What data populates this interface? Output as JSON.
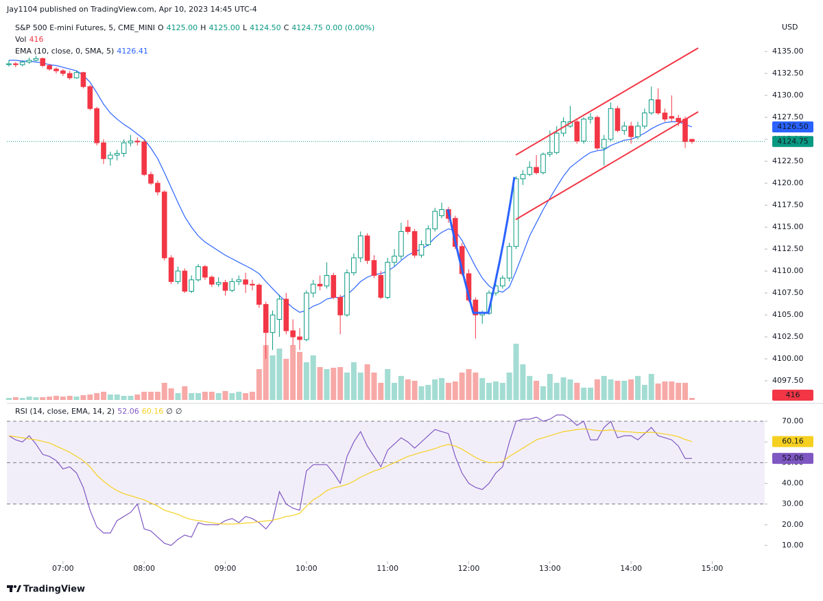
{
  "header": {
    "published": "Jay1104 published on TradingView.com, Apr 10, 2023 14:45 UTC-4",
    "symbol": "S&P 500 E-mini Futures, 5, CME_MINI",
    "ohlc": [
      {
        "label": "O",
        "value": "4125.00"
      },
      {
        "label": "H",
        "value": "4125.00"
      },
      {
        "label": "L",
        "value": "4124.50"
      },
      {
        "label": "C",
        "value": "4124.75"
      }
    ],
    "change": "0.00 (0.00%)"
  },
  "footer": {
    "brand": "TradingView"
  },
  "chart_data": {
    "type": "candlestick",
    "currency": "USD",
    "up_color": "#089981",
    "down_color": "#f23645",
    "ylim": [
      4095.16,
      4138.52
    ],
    "yticks": [
      {
        "value": 4097.5,
        "label": "4097.50"
      },
      {
        "value": 4100,
        "label": "4100.00"
      },
      {
        "value": 4102.5,
        "label": "4102.50"
      },
      {
        "value": 4105,
        "label": "4105.00"
      },
      {
        "value": 4107.5,
        "label": "4107.50"
      },
      {
        "value": 4110,
        "label": "4110.00"
      },
      {
        "value": 4112.5,
        "label": "4112.50"
      },
      {
        "value": 4115,
        "label": "4115.00"
      },
      {
        "value": 4117.5,
        "label": "4117.50"
      },
      {
        "value": 4120,
        "label": "4120.00"
      },
      {
        "value": 4122.5,
        "label": "4122.50"
      },
      {
        "value": 4125,
        "label": "4125.00"
      },
      {
        "value": 4127.5,
        "label": "4127.50"
      },
      {
        "value": 4130,
        "label": "4130.00"
      },
      {
        "value": 4132.5,
        "label": "4132.50"
      },
      {
        "value": 4135,
        "label": "4135.00"
      }
    ],
    "xlim": [
      -0.3,
      111.76
    ],
    "xticks": [
      {
        "value": 8,
        "label": "07:00"
      },
      {
        "value": 20,
        "label": "08:00"
      },
      {
        "value": 32,
        "label": "09:00"
      },
      {
        "value": 44,
        "label": "10:00"
      },
      {
        "value": 56,
        "label": "11:00"
      },
      {
        "value": 68,
        "label": "12:00"
      },
      {
        "value": 80,
        "label": "13:00"
      },
      {
        "value": 92,
        "label": "14:00"
      },
      {
        "value": 104,
        "label": "15:00"
      }
    ],
    "last_price_label": "4124.75",
    "ohlc": [
      [
        4133.5,
        4134,
        4133.3,
        4133.6
      ],
      [
        4133.6,
        4133.8,
        4133.2,
        4133.5
      ],
      [
        4133.5,
        4134,
        4133.3,
        4133.8
      ],
      [
        4133.8,
        4134.3,
        4133.6,
        4134
      ],
      [
        4134,
        4134.5,
        4133.9,
        4134.2
      ],
      [
        4134.2,
        4134.3,
        4133.2,
        4133.4
      ],
      [
        4133.4,
        4133.6,
        4132.8,
        4133
      ],
      [
        4133,
        4133.2,
        4132.5,
        4132.8
      ],
      [
        4132.8,
        4133,
        4132.2,
        4132.5
      ],
      [
        4132.5,
        4132.8,
        4131.8,
        4132
      ],
      [
        4132,
        4132.8,
        4131.9,
        4132.6
      ],
      [
        4132.6,
        4132.7,
        4130.8,
        4131
      ],
      [
        4131,
        4131.2,
        4128.3,
        4128.5
      ],
      [
        4128.5,
        4128.7,
        4124.3,
        4124.6
      ],
      [
        4124.6,
        4125,
        4122.2,
        4122.8
      ],
      [
        4122.8,
        4123.6,
        4122,
        4123.2
      ],
      [
        4123.2,
        4123.8,
        4122.6,
        4123.4
      ],
      [
        4123.4,
        4125,
        4123,
        4124.6
      ],
      [
        4124.6,
        4125.5,
        4124.2,
        4124.8
      ],
      [
        4124.8,
        4125.2,
        4124.3,
        4124.7
      ],
      [
        4124.7,
        4124.9,
        4120.8,
        4121
      ],
      [
        4121,
        4121.3,
        4119.8,
        4120
      ],
      [
        4120,
        4120.3,
        4118.6,
        4119
      ],
      [
        4119,
        4119.2,
        4111.2,
        4111.5
      ],
      [
        4111.5,
        4111.8,
        4108.5,
        4108.8
      ],
      [
        4108.8,
        4110.5,
        4108.5,
        4110
      ],
      [
        4110,
        4110.3,
        4107.5,
        4107.7
      ],
      [
        4107.7,
        4109.5,
        4107.5,
        4109
      ],
      [
        4109,
        4110.8,
        4108.8,
        4110.5
      ],
      [
        4110.5,
        4110.7,
        4109,
        4109.3
      ],
      [
        4109.3,
        4109.5,
        4108.2,
        4108.5
      ],
      [
        4108.5,
        4109.3,
        4108.2,
        4108.7
      ],
      [
        4108.7,
        4109,
        4107.2,
        4107.8
      ],
      [
        4107.8,
        4109.2,
        4107.6,
        4108.8
      ],
      [
        4108.8,
        4109.5,
        4108.4,
        4109
      ],
      [
        4109,
        4109.8,
        4107.5,
        4108.5
      ],
      [
        4108.5,
        4109,
        4107.8,
        4108.4
      ],
      [
        4108.4,
        4108.6,
        4105.8,
        4106.2
      ],
      [
        4106.2,
        4106.5,
        4100,
        4103
      ],
      [
        4103,
        4105.5,
        4101,
        4105
      ],
      [
        4104.5,
        4107.3,
        4102.5,
        4106.8
      ],
      [
        4106.8,
        4107.5,
        4102.8,
        4103.2
      ],
      [
        4103.2,
        4104.5,
        4101.5,
        4102.5
      ],
      [
        4102.5,
        4103.5,
        4101,
        4102.2
      ],
      [
        4102.2,
        4107.8,
        4102,
        4107.5
      ],
      [
        4107.5,
        4109,
        4107,
        4108.5
      ],
      [
        4108.5,
        4109.5,
        4107.8,
        4108.3
      ],
      [
        4108.3,
        4111,
        4108,
        4109.5
      ],
      [
        4109.5,
        4109.8,
        4106.8,
        4107
      ],
      [
        4107,
        4107.3,
        4102.8,
        4105
      ],
      [
        4105,
        4110.2,
        4104.8,
        4109.8
      ],
      [
        4109.8,
        4112,
        4109.5,
        4111.5
      ],
      [
        4111.5,
        4114.5,
        4111,
        4114
      ],
      [
        4114,
        4114.3,
        4110.8,
        4111.2
      ],
      [
        4111.2,
        4111.8,
        4109.2,
        4109.5
      ],
      [
        4109.5,
        4110,
        4106.8,
        4107
      ],
      [
        4107,
        4111.5,
        4106.8,
        4111
      ],
      [
        4111,
        4112.5,
        4110.5,
        4111.7
      ],
      [
        4111.7,
        4115.5,
        4111.3,
        4114.5
      ],
      [
        4115,
        4115.8,
        4114.2,
        4114.5
      ],
      [
        4114.5,
        4114.8,
        4111.5,
        4111.8
      ],
      [
        4111.8,
        4113.5,
        4111.5,
        4113
      ],
      [
        4113,
        4115.2,
        4112.8,
        4114.8
      ],
      [
        4114.8,
        4117.2,
        4114.5,
        4116.8
      ],
      [
        4116.3,
        4117.8,
        4116,
        4117
      ],
      [
        4117,
        4117.3,
        4115.5,
        4116
      ],
      [
        4116,
        4116.3,
        4112.5,
        4112.8
      ],
      [
        4112.8,
        4113.2,
        4109.5,
        4109.7
      ],
      [
        4109.7,
        4110.2,
        4106.5,
        4106.7
      ],
      [
        4106.7,
        4107,
        4102.3,
        4105
      ],
      [
        4105,
        4105.5,
        4104,
        4105.2
      ],
      [
        4105.2,
        4107.8,
        4105,
        4107.5
      ],
      [
        4107.5,
        4108.8,
        4107.2,
        4108.3
      ],
      [
        4108.3,
        4109.5,
        4108,
        4109.2
      ],
      [
        4109.2,
        4113.2,
        4108.8,
        4112.8
      ],
      [
        4112.8,
        4120.8,
        4112.5,
        4120.5
      ],
      [
        4120.5,
        4121.5,
        4119.8,
        4121
      ],
      [
        4121,
        4122.5,
        4120.8,
        4121.8
      ],
      [
        4121.8,
        4123.2,
        4121,
        4121.2
      ],
      [
        4121.2,
        4123.5,
        4121,
        4123.3
      ],
      [
        4123.3,
        4126,
        4123,
        4123.5
      ],
      [
        4123.5,
        4126.5,
        4123.3,
        4125.7
      ],
      [
        4125.7,
        4127.5,
        4125.3,
        4127
      ],
      [
        4126.5,
        4128.8,
        4126.3,
        4127
      ],
      [
        4127,
        4127.2,
        4124.5,
        4124.8
      ],
      [
        4124.8,
        4127.5,
        4124.5,
        4127.3
      ],
      [
        4127.3,
        4128,
        4126.8,
        4127.5
      ],
      [
        4127.5,
        4127.7,
        4123.8,
        4124
      ],
      [
        4124,
        4125.5,
        4122,
        4125
      ],
      [
        4125,
        4129.2,
        4124.8,
        4128.5
      ],
      [
        4128.5,
        4128.8,
        4125.8,
        4126
      ],
      [
        4126,
        4127,
        4125.5,
        4126.5
      ],
      [
        4126.5,
        4127,
        4124.5,
        4125.3
      ],
      [
        4125.3,
        4127,
        4125,
        4126.5
      ],
      [
        4126.5,
        4128.5,
        4126.2,
        4128
      ],
      [
        4128,
        4131,
        4127.8,
        4129.5
      ],
      [
        4129.5,
        4130.8,
        4127.8,
        4128
      ],
      [
        4128,
        4128.5,
        4127,
        4127.3
      ],
      [
        4127.6,
        4130,
        4127,
        4127.4
      ],
      [
        4127.4,
        4127.8,
        4126.5,
        4127
      ],
      [
        4127.3,
        4127.6,
        4124,
        4124.75
      ],
      [
        4125,
        4125,
        4124.5,
        4124.75
      ]
    ],
    "volume": {
      "name": "Vol",
      "legend_value": "416",
      "axis_label": "416",
      "up_color": "#a3dcd2",
      "down_color": "#f7a9a7",
      "values": [
        420,
        560,
        420,
        700,
        560,
        560,
        700,
        840,
        700,
        840,
        700,
        980,
        1110,
        1390,
        1670,
        1110,
        1110,
        840,
        840,
        1110,
        1670,
        1670,
        1670,
        3480,
        2360,
        1390,
        2780,
        1390,
        1390,
        1670,
        1670,
        1390,
        1810,
        1390,
        1670,
        1390,
        1670,
        6260,
        11120,
        9040,
        10430,
        8340,
        11120,
        9730,
        7650,
        9040,
        6670,
        6260,
        6530,
        6670,
        5560,
        7650,
        5560,
        7230,
        5560,
        3480,
        6260,
        3480,
        4870,
        4170,
        3890,
        2780,
        3060,
        4170,
        4450,
        3480,
        3750,
        5560,
        6260,
        5560,
        4450,
        3480,
        3750,
        3480,
        5560,
        11400,
        7230,
        4870,
        3890,
        2780,
        5280,
        3480,
        4590,
        4170,
        3480,
        2500,
        2500,
        4170,
        4870,
        4170,
        3890,
        3890,
        4170,
        4870,
        3060,
        5280,
        3340,
        3750,
        3750,
        3480,
        3480,
        416
      ]
    },
    "ema": {
      "name": "EMA (10, close, 0, SMA, 5)",
      "legend_value": "4126.41",
      "axis_label": "4126.50",
      "color": "#2962ff",
      "values": [
        4134.0,
        4134.0,
        4133.9,
        4133.9,
        4133.8,
        4133.7,
        4133.5,
        4133.4,
        4133.2,
        4133.0,
        4132.8,
        4132.3,
        4131.5,
        4130.3,
        4129.0,
        4128.0,
        4127.3,
        4126.7,
        4126.2,
        4125.6,
        4125.0,
        4124.0,
        4122.8,
        4121.2,
        4119.5,
        4117.8,
        4116.2,
        4115.0,
        4114.0,
        4113.3,
        4112.8,
        4112.3,
        4111.8,
        4111.4,
        4111.0,
        4110.6,
        4110.2,
        4109.7,
        4108.8,
        4108.0,
        4107.2,
        4106.5,
        4105.8,
        4105.3,
        4105.5,
        4106.0,
        4106.3,
        4106.8,
        4107.0,
        4107.0,
        4107.3,
        4108.0,
        4108.8,
        4109.3,
        4109.6,
        4109.7,
        4110.0,
        4110.5,
        4111.2,
        4111.8,
        4112.2,
        4112.5,
        4113.0,
        4113.8,
        4114.4,
        4114.8,
        4114.6,
        4113.5,
        4112.0,
        4110.5,
        4109.2,
        4108.3,
        4107.8,
        4107.6,
        4108.2,
        4110.0,
        4112.0,
        4114.0,
        4115.5,
        4117.0,
        4118.3,
        4119.6,
        4120.8,
        4121.8,
        4122.4,
        4123.0,
        4123.5,
        4123.7,
        4123.8,
        4124.3,
        4124.6,
        4124.9,
        4125.0,
        4125.3,
        4125.7,
        4126.2,
        4126.6,
        4126.9,
        4127.0,
        4127.0,
        4126.7,
        4126.41
      ]
    },
    "rsi": {
      "type": "line",
      "name": "RSI (14, close, EMA, 14, 2)",
      "extra": [
        "∅",
        "∅"
      ],
      "ylim": [
        2.38,
        77.29
      ],
      "yticks": [
        {
          "value": 10,
          "label": "10.00"
        },
        {
          "value": 20,
          "label": "20.00"
        },
        {
          "value": 30,
          "label": "30.00"
        },
        {
          "value": 40,
          "label": "40.00"
        },
        {
          "value": 50,
          "label": "50.00"
        },
        {
          "value": 60,
          "label": "60.00"
        },
        {
          "value": 70,
          "label": "70.00"
        }
      ],
      "band": [
        30,
        70
      ],
      "midline": 50,
      "band_color": "#ede7f6",
      "series": [
        {
          "legend_value": "52.06",
          "color": "#7e57c2",
          "values": [
            63,
            61,
            60,
            63,
            59,
            54,
            53,
            51,
            47,
            48,
            45,
            38,
            27,
            19,
            16,
            16,
            22,
            24,
            26,
            30,
            18,
            17,
            14,
            11,
            10,
            13,
            15,
            14,
            21,
            20,
            20,
            20,
            22,
            23,
            21,
            24,
            23,
            21,
            18,
            22,
            36,
            30,
            28,
            27,
            46,
            49,
            49,
            49,
            45,
            40,
            53,
            60,
            65,
            58,
            53,
            48,
            56,
            59,
            62,
            60,
            57,
            60,
            63,
            66,
            65,
            64,
            53,
            45,
            40,
            38,
            37,
            40,
            45,
            48,
            60,
            70,
            71,
            71,
            72,
            70,
            71,
            73,
            73,
            71,
            68,
            70,
            61,
            61,
            67,
            70,
            62,
            63,
            63,
            61,
            64,
            67,
            63,
            62,
            61,
            58,
            52,
            52.06
          ]
        },
        {
          "legend_value": "60.16",
          "color": "#f5d020",
          "values": [
            63,
            62.5,
            62,
            61.5,
            61,
            60.3,
            59.5,
            58,
            56.5,
            55,
            53,
            51,
            48,
            44,
            41,
            38.5,
            36.5,
            35,
            34,
            33,
            32,
            30.5,
            29,
            27,
            26,
            25,
            23.5,
            22.5,
            22,
            21.5,
            21,
            20.5,
            20.3,
            20.3,
            20.5,
            20.8,
            21,
            21.5,
            21.8,
            22.2,
            23,
            24,
            24.5,
            25.5,
            29,
            32,
            34,
            36.5,
            37.8,
            38.5,
            39.5,
            41,
            43,
            44.5,
            46,
            47,
            48.5,
            50,
            51.5,
            53,
            54,
            55,
            55.8,
            56.8,
            58,
            58.8,
            58,
            56.5,
            54.5,
            52.5,
            51,
            50,
            50,
            50.5,
            53,
            55,
            57,
            59,
            61,
            62,
            63,
            64,
            65,
            65.5,
            66,
            66.3,
            66,
            65.5,
            65.5,
            65.8,
            65.3,
            65,
            64.8,
            64.5,
            64.5,
            64.7,
            64.3,
            63.8,
            63.3,
            62.5,
            61.2,
            60.16
          ]
        }
      ]
    }
  }
}
